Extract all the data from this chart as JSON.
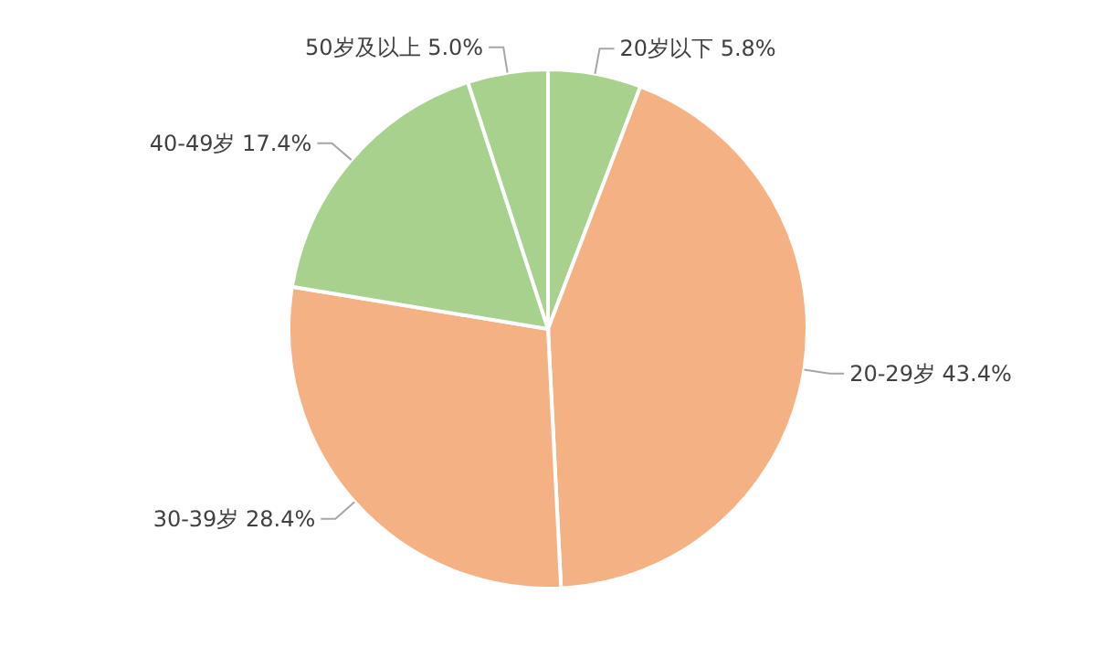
{
  "chart_data": {
    "type": "pie",
    "categories": [
      "20岁以下",
      "20-29岁",
      "30-39岁",
      "40-49岁",
      "50岁及以上"
    ],
    "values": [
      5.8,
      43.4,
      28.4,
      17.4,
      5.0
    ],
    "colors": [
      "#a9d18e",
      "#f4b183",
      "#f4b183",
      "#a9d18e",
      "#a9d18e"
    ],
    "value_labels": [
      "5.8%",
      "43.4%",
      "28.4%",
      "17.4%",
      "5.0%"
    ]
  }
}
